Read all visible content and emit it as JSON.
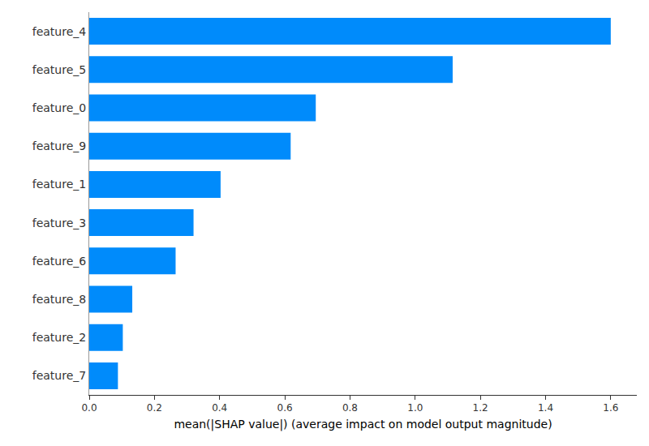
{
  "chart_data": {
    "type": "bar",
    "orientation": "horizontal",
    "x_label": "mean(|SHAP value|) (average impact on model output magnitude)",
    "categories": [
      "feature_4",
      "feature_5",
      "feature_0",
      "feature_9",
      "feature_1",
      "feature_3",
      "feature_6",
      "feature_8",
      "feature_2",
      "feature_7"
    ],
    "values": [
      1.6,
      1.115,
      0.695,
      0.618,
      0.403,
      0.32,
      0.265,
      0.132,
      0.103,
      0.088
    ],
    "color": "#008bfb",
    "xlim": [
      0,
      1.68
    ],
    "xticks": [
      {
        "value": 0,
        "label": "0.0"
      },
      0.2,
      0.4,
      0.6,
      0.8,
      {
        "value": 1,
        "label": "1.0"
      },
      1.2,
      1.4,
      1.6
    ],
    "grid": false
  }
}
